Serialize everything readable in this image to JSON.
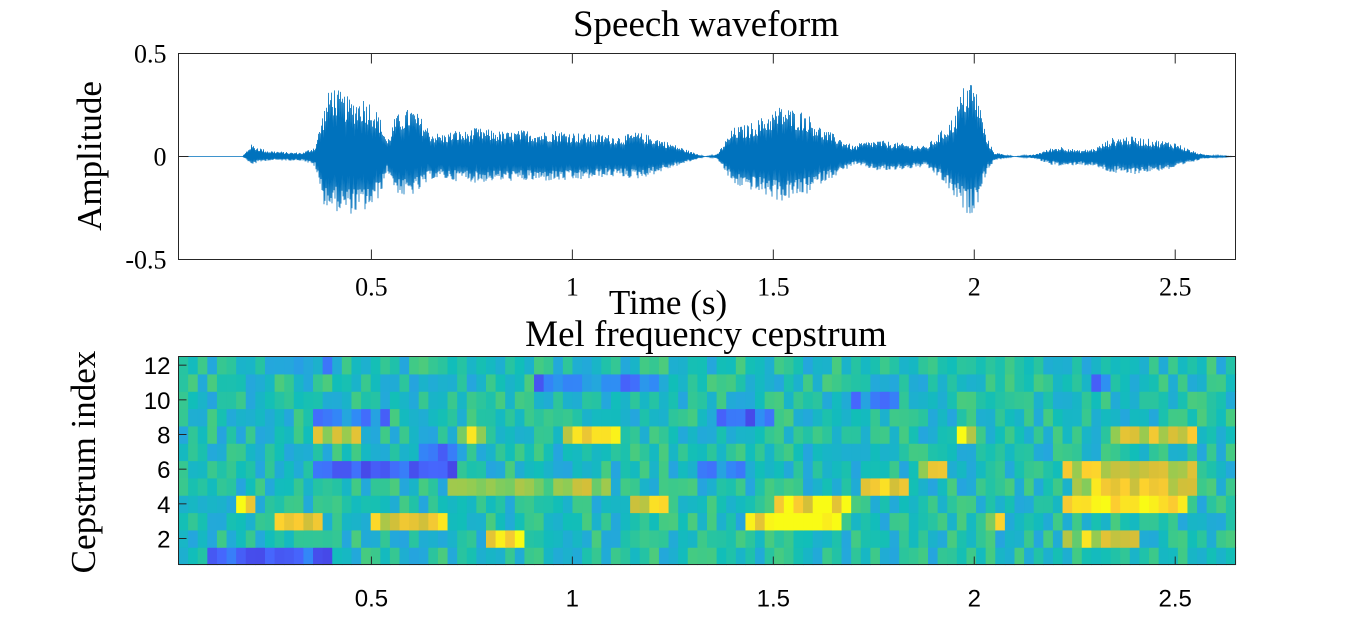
{
  "chart_data": [
    {
      "type": "line",
      "title": "Speech waveform",
      "xlabel": "Time (s)",
      "ylabel": "Amplitude",
      "xlim": [
        0.02,
        2.65
      ],
      "ylim": [
        -0.5,
        0.5
      ],
      "xticks": [
        {
          "value": 0.5,
          "label": "0.5"
        },
        {
          "value": 1,
          "label": "1"
        },
        {
          "value": 1.5,
          "label": "1.5"
        },
        {
          "value": 2,
          "label": "2"
        },
        {
          "value": 2.5,
          "label": "2.5"
        }
      ],
      "yticks": [
        {
          "value": 0.5,
          "label": "0.5"
        },
        {
          "value": 0,
          "label": "0"
        },
        {
          "value": -0.5,
          "label": "-0.5"
        }
      ],
      "line_color": "#0072BD",
      "grid": false,
      "series": [
        {
          "x": [
            0.02,
            0.18,
            0.2,
            0.24,
            0.3,
            0.33,
            0.36,
            0.38,
            0.4,
            0.42,
            0.45,
            0.48,
            0.5,
            0.52,
            0.54,
            0.56,
            0.58,
            0.6,
            0.62,
            0.65,
            0.68,
            0.71,
            0.73,
            0.76,
            0.8,
            0.84,
            0.88,
            0.92,
            0.96,
            1.0,
            1.04,
            1.08,
            1.12,
            1.16,
            1.2,
            1.24,
            1.3,
            1.33,
            1.36,
            1.4,
            1.44,
            1.48,
            1.52,
            1.55,
            1.58,
            1.62,
            1.66,
            1.7,
            1.72,
            1.76,
            1.8,
            1.84,
            1.88,
            1.92,
            1.95,
            1.97,
            1.99,
            2.01,
            2.03,
            2.05,
            2.1,
            2.15,
            2.19,
            2.22,
            2.26,
            2.3,
            2.34,
            2.38,
            2.42,
            2.46,
            2.5,
            2.54,
            2.57,
            2.65
          ],
          "y": [
            0.0,
            0.0,
            0.06,
            0.03,
            0.02,
            0.02,
            0.05,
            0.22,
            0.36,
            0.32,
            0.28,
            0.29,
            0.27,
            0.2,
            0.08,
            0.2,
            0.22,
            0.24,
            0.2,
            0.12,
            0.11,
            0.13,
            0.12,
            0.14,
            0.13,
            0.12,
            0.13,
            0.12,
            0.13,
            0.12,
            0.11,
            0.11,
            0.1,
            0.12,
            0.1,
            0.07,
            0.02,
            0.0,
            0.01,
            0.14,
            0.16,
            0.2,
            0.25,
            0.23,
            0.22,
            0.14,
            0.1,
            0.05,
            0.07,
            0.08,
            0.07,
            0.06,
            0.05,
            0.13,
            0.2,
            0.33,
            0.39,
            0.3,
            0.1,
            0.02,
            0.0,
            0.01,
            0.04,
            0.05,
            0.03,
            0.04,
            0.09,
            0.1,
            0.09,
            0.08,
            0.07,
            0.03,
            0.01,
            0.0
          ],
          "y_negative": [
            0.0,
            0.0,
            -0.04,
            -0.02,
            -0.02,
            -0.02,
            -0.05,
            -0.23,
            -0.26,
            -0.27,
            -0.28,
            -0.27,
            -0.25,
            -0.2,
            -0.07,
            -0.17,
            -0.2,
            -0.19,
            -0.17,
            -0.11,
            -0.11,
            -0.12,
            -0.11,
            -0.13,
            -0.12,
            -0.12,
            -0.12,
            -0.12,
            -0.12,
            -0.12,
            -0.11,
            -0.1,
            -0.1,
            -0.11,
            -0.09,
            -0.06,
            -0.02,
            0.0,
            -0.01,
            -0.14,
            -0.16,
            -0.19,
            -0.22,
            -0.2,
            -0.19,
            -0.13,
            -0.09,
            -0.04,
            -0.05,
            -0.07,
            -0.07,
            -0.06,
            -0.05,
            -0.12,
            -0.2,
            -0.26,
            -0.29,
            -0.22,
            -0.08,
            -0.02,
            0.0,
            -0.01,
            -0.04,
            -0.05,
            -0.04,
            -0.05,
            -0.08,
            -0.09,
            -0.08,
            -0.07,
            -0.06,
            -0.03,
            -0.01,
            0.0
          ]
        }
      ]
    },
    {
      "type": "heatmap",
      "title": "Mel frequency cepstrum",
      "xlabel": "",
      "ylabel": "Cepstrum index",
      "xlim": [
        0.02,
        2.65
      ],
      "ylim": [
        0.5,
        12.5
      ],
      "colormap": "parula",
      "xticks": [
        {
          "value": 0.5,
          "label": "0.5"
        },
        {
          "value": 1,
          "label": "1"
        },
        {
          "value": 1.5,
          "label": "1.5"
        },
        {
          "value": 2,
          "label": "2"
        },
        {
          "value": 2.5,
          "label": "2.5"
        }
      ],
      "yticks": [
        {
          "value": 2,
          "label": "2"
        },
        {
          "value": 4,
          "label": "4"
        },
        {
          "value": 6,
          "label": "6"
        },
        {
          "value": 8,
          "label": "8"
        },
        {
          "value": 10,
          "label": "10"
        },
        {
          "value": 12,
          "label": "12"
        }
      ],
      "frames": 110,
      "coefficients": 12,
      "value_range": [
        0,
        1
      ],
      "regions": [
        {
          "c": 1,
          "t0": 0.1,
          "t1": 0.4,
          "v": -0.3
        },
        {
          "c": 2,
          "t0": 0.78,
          "t1": 0.88,
          "v": 0.38
        },
        {
          "c": 2,
          "t0": 2.23,
          "t1": 2.4,
          "v": 0.28
        },
        {
          "c": 3,
          "t0": 0.25,
          "t1": 0.37,
          "v": 0.32
        },
        {
          "c": 3,
          "t0": 0.5,
          "t1": 0.7,
          "v": 0.32
        },
        {
          "c": 3,
          "t0": 1.42,
          "t1": 1.68,
          "v": 0.45
        },
        {
          "c": 3,
          "t0": 2.02,
          "t1": 2.08,
          "v": 0.32
        },
        {
          "c": 4,
          "t0": 0.16,
          "t1": 0.22,
          "v": 0.4
        },
        {
          "c": 4,
          "t0": 1.15,
          "t1": 1.25,
          "v": 0.35
        },
        {
          "c": 4,
          "t0": 1.5,
          "t1": 1.7,
          "v": 0.42
        },
        {
          "c": 4,
          "t0": 2.22,
          "t1": 2.52,
          "v": 0.45
        },
        {
          "c": 5,
          "t0": 0.7,
          "t1": 1.1,
          "v": 0.22
        },
        {
          "c": 5,
          "t0": 1.72,
          "t1": 1.84,
          "v": 0.28
        },
        {
          "c": 5,
          "t0": 2.25,
          "t1": 2.55,
          "v": 0.3
        },
        {
          "c": 6,
          "t0": 0.35,
          "t1": 0.72,
          "v": -0.35
        },
        {
          "c": 6,
          "t0": 1.3,
          "t1": 1.42,
          "v": -0.22
        },
        {
          "c": 6,
          "t0": 2.22,
          "t1": 2.55,
          "v": 0.28
        },
        {
          "c": 6,
          "t0": 1.85,
          "t1": 1.94,
          "v": 0.28
        },
        {
          "c": 7,
          "t0": 0.62,
          "t1": 0.72,
          "v": -0.28
        },
        {
          "c": 8,
          "t0": 0.35,
          "t1": 0.48,
          "v": 0.32
        },
        {
          "c": 8,
          "t0": 0.72,
          "t1": 0.78,
          "v": 0.3
        },
        {
          "c": 8,
          "t0": 0.97,
          "t1": 1.12,
          "v": 0.4
        },
        {
          "c": 8,
          "t0": 1.95,
          "t1": 2.0,
          "v": 0.35
        },
        {
          "c": 8,
          "t0": 2.35,
          "t1": 2.55,
          "v": 0.3
        },
        {
          "c": 9,
          "t0": 0.35,
          "t1": 0.55,
          "v": -0.2
        },
        {
          "c": 9,
          "t0": 1.35,
          "t1": 1.5,
          "v": -0.25
        },
        {
          "c": 10,
          "t0": 1.7,
          "t1": 1.82,
          "v": -0.22
        },
        {
          "c": 11,
          "t0": 0.9,
          "t1": 1.25,
          "v": -0.2
        },
        {
          "c": 11,
          "t0": 2.3,
          "t1": 2.35,
          "v": -0.3
        },
        {
          "c": 12,
          "t0": 0.3,
          "t1": 0.4,
          "v": -0.15
        }
      ]
    }
  ]
}
